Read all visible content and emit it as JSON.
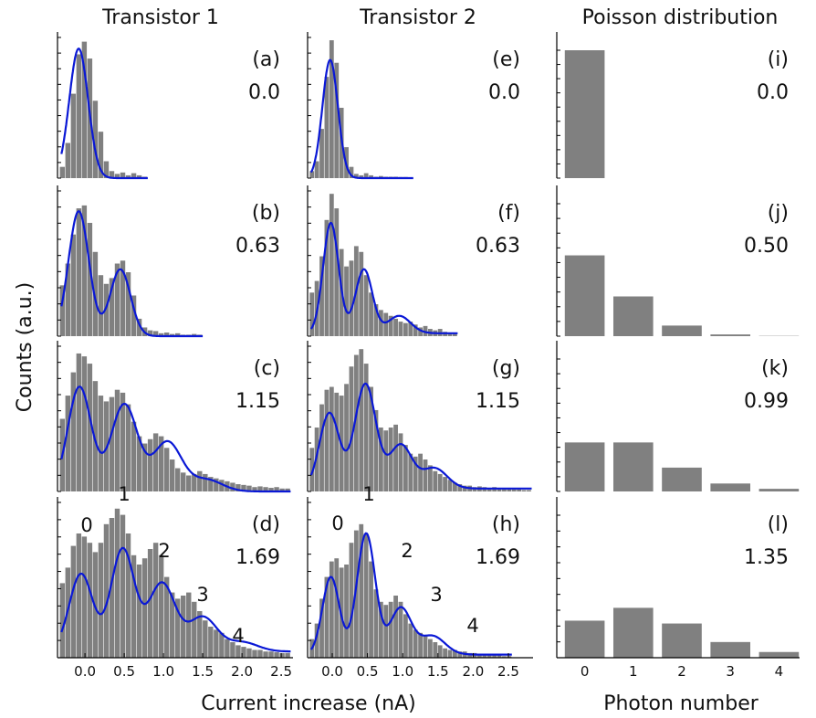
{
  "figure": {
    "ylabel": "Counts (a.u.)",
    "columns": [
      "Transistor 1",
      "Transistor 2",
      "Poisson distribution"
    ],
    "xlabel_current": "Current increase (nA)",
    "xlabel_photon": "Photon number"
  },
  "colors": {
    "bar": "#808080",
    "fit": "#0a18d6",
    "axis": "#000000"
  },
  "chart_data": [
    {
      "type": "bar",
      "panel": "(a)",
      "value_label": "0.0",
      "peak_labels": [],
      "xlim": [
        -0.35,
        2.65
      ],
      "bin_width": 0.07,
      "bins": [
        -0.32,
        -0.25,
        -0.18,
        -0.11,
        -0.04,
        0.03,
        0.1,
        0.17,
        0.24,
        0.31,
        0.38,
        0.45,
        0.52,
        0.59,
        0.66,
        0.73
      ],
      "counts": [
        0.08,
        0.25,
        0.6,
        0.88,
        0.97,
        0.85,
        0.55,
        0.33,
        0.12,
        0.05,
        0.03,
        0.04,
        0.02,
        0.035,
        0.02,
        0.01
      ],
      "fit": {
        "peaks": [
          {
            "mu": -0.08,
            "sigma": 0.12,
            "amp": 0.92
          }
        ],
        "offset": 0.0
      },
      "ticks": [
        0.0,
        0.5,
        1.0,
        1.5,
        2.0,
        2.5
      ],
      "show_tick_labels": false
    },
    {
      "type": "bar",
      "panel": "(b)",
      "value_label": "0.63",
      "peak_labels": [],
      "xlim": [
        -0.35,
        2.65
      ],
      "bin_width": 0.07,
      "bins": [
        -0.32,
        -0.25,
        -0.18,
        -0.11,
        -0.04,
        0.03,
        0.1,
        0.17,
        0.24,
        0.31,
        0.38,
        0.45,
        0.52,
        0.59,
        0.66,
        0.73,
        0.8,
        0.87,
        0.94,
        1.01,
        1.08,
        1.15,
        1.22,
        1.29,
        1.36,
        1.43
      ],
      "counts": [
        0.35,
        0.5,
        0.7,
        0.88,
        0.9,
        0.78,
        0.58,
        0.42,
        0.36,
        0.4,
        0.5,
        0.52,
        0.44,
        0.28,
        0.12,
        0.06,
        0.04,
        0.035,
        0.02,
        0.025,
        0.015,
        0.02,
        0.01,
        0.01,
        0.015,
        0.01
      ],
      "fit": {
        "peaks": [
          {
            "mu": -0.08,
            "sigma": 0.13,
            "amp": 0.86
          },
          {
            "mu": 0.45,
            "sigma": 0.13,
            "amp": 0.46
          }
        ],
        "offset": 0.0
      },
      "ticks": [
        0.0,
        0.5,
        1.0,
        1.5,
        2.0,
        2.5
      ],
      "show_tick_labels": false
    },
    {
      "type": "bar",
      "panel": "(c)",
      "value_label": "1.15",
      "peak_labels": [],
      "xlim": [
        -0.35,
        2.65
      ],
      "bin_width": 0.07,
      "bins": [
        -0.32,
        -0.25,
        -0.18,
        -0.11,
        -0.04,
        0.03,
        0.1,
        0.17,
        0.24,
        0.31,
        0.38,
        0.45,
        0.52,
        0.59,
        0.66,
        0.73,
        0.8,
        0.87,
        0.94,
        1.01,
        1.08,
        1.15,
        1.22,
        1.29,
        1.36,
        1.43,
        1.5,
        1.57,
        1.64,
        1.71,
        1.78,
        1.85,
        1.92,
        1.99,
        2.06,
        2.13,
        2.2,
        2.27,
        2.34,
        2.41,
        2.48,
        2.55
      ],
      "counts": [
        0.5,
        0.66,
        0.82,
        0.95,
        0.93,
        0.88,
        0.76,
        0.66,
        0.62,
        0.65,
        0.7,
        0.68,
        0.6,
        0.48,
        0.38,
        0.33,
        0.36,
        0.4,
        0.38,
        0.3,
        0.22,
        0.16,
        0.13,
        0.11,
        0.12,
        0.14,
        0.12,
        0.1,
        0.09,
        0.08,
        0.07,
        0.06,
        0.05,
        0.045,
        0.04,
        0.03,
        0.035,
        0.03,
        0.025,
        0.03,
        0.02,
        0.02
      ],
      "fit": {
        "peaks": [
          {
            "mu": -0.07,
            "sigma": 0.15,
            "amp": 0.72
          },
          {
            "mu": 0.5,
            "sigma": 0.17,
            "amp": 0.6
          },
          {
            "mu": 1.05,
            "sigma": 0.18,
            "amp": 0.34
          },
          {
            "mu": 1.55,
            "sigma": 0.2,
            "amp": 0.08
          }
        ],
        "offset": 0.0
      },
      "ticks": [
        0.0,
        0.5,
        1.0,
        1.5,
        2.0,
        2.5
      ],
      "show_tick_labels": false
    },
    {
      "type": "bar",
      "panel": "(d)",
      "value_label": "1.69",
      "peak_labels": [
        "0",
        "1",
        "2",
        "3",
        "4"
      ],
      "xlim": [
        -0.35,
        2.65
      ],
      "bin_width": 0.07,
      "bins": [
        -0.32,
        -0.25,
        -0.18,
        -0.11,
        -0.04,
        0.03,
        0.1,
        0.17,
        0.24,
        0.31,
        0.38,
        0.45,
        0.52,
        0.59,
        0.66,
        0.73,
        0.8,
        0.87,
        0.94,
        1.01,
        1.08,
        1.15,
        1.22,
        1.29,
        1.36,
        1.43,
        1.5,
        1.57,
        1.64,
        1.71,
        1.78,
        1.85,
        1.92,
        1.99,
        2.06,
        2.13,
        2.2,
        2.27,
        2.34,
        2.41,
        2.48,
        2.55
      ],
      "counts": [
        0.48,
        0.58,
        0.72,
        0.8,
        0.78,
        0.74,
        0.68,
        0.74,
        0.86,
        0.9,
        0.96,
        0.92,
        0.8,
        0.66,
        0.6,
        0.64,
        0.7,
        0.74,
        0.66,
        0.52,
        0.42,
        0.38,
        0.4,
        0.42,
        0.36,
        0.3,
        0.24,
        0.2,
        0.18,
        0.16,
        0.12,
        0.1,
        0.08,
        0.07,
        0.06,
        0.05,
        0.05,
        0.04,
        0.04,
        0.035,
        0.03,
        0.03
      ],
      "fit": {
        "peaks": [
          {
            "mu": -0.05,
            "sigma": 0.15,
            "amp": 0.5
          },
          {
            "mu": 0.48,
            "sigma": 0.15,
            "amp": 0.66
          },
          {
            "mu": 0.98,
            "sigma": 0.17,
            "amp": 0.44
          },
          {
            "mu": 1.5,
            "sigma": 0.18,
            "amp": 0.22
          },
          {
            "mu": 2.0,
            "sigma": 0.2,
            "amp": 0.06
          }
        ],
        "offset": 0.04
      },
      "ticks": [
        0.0,
        0.5,
        1.0,
        1.5,
        2.0,
        2.5
      ],
      "show_tick_labels": true
    },
    {
      "type": "bar",
      "panel": "(e)",
      "value_label": "0.0",
      "peak_labels": [],
      "xlim": [
        -0.35,
        2.85
      ],
      "bin_width": 0.07,
      "bins": [
        -0.32,
        -0.25,
        -0.18,
        -0.11,
        -0.04,
        0.03,
        0.1,
        0.17,
        0.24,
        0.31,
        0.38,
        0.45,
        0.52,
        0.59,
        0.66,
        0.73,
        0.8,
        0.87,
        0.94,
        1.01,
        1.08
      ],
      "counts": [
        0.05,
        0.12,
        0.35,
        0.72,
        0.98,
        0.82,
        0.5,
        0.22,
        0.08,
        0.03,
        0.02,
        0.035,
        0.02,
        0.01,
        0.015,
        0.01,
        0.01,
        0.01,
        0.008,
        0.008,
        0.006
      ],
      "fit": {
        "peaks": [
          {
            "mu": -0.03,
            "sigma": 0.11,
            "amp": 0.84
          }
        ],
        "offset": 0.0
      },
      "ticks": [
        0.0,
        0.5,
        1.0,
        1.5,
        2.0,
        2.5
      ],
      "show_tick_labels": false
    },
    {
      "type": "bar",
      "panel": "(f)",
      "value_label": "0.63",
      "peak_labels": [],
      "xlim": [
        -0.35,
        2.85
      ],
      "bin_width": 0.07,
      "bins": [
        -0.32,
        -0.25,
        -0.18,
        -0.11,
        -0.04,
        0.03,
        0.1,
        0.17,
        0.24,
        0.31,
        0.38,
        0.45,
        0.52,
        0.59,
        0.66,
        0.73,
        0.8,
        0.87,
        0.94,
        1.01,
        1.08,
        1.15,
        1.22,
        1.29,
        1.36,
        1.43,
        1.5,
        1.57,
        1.64,
        1.71
      ],
      "counts": [
        0.3,
        0.38,
        0.55,
        0.8,
        0.98,
        0.88,
        0.6,
        0.48,
        0.52,
        0.62,
        0.58,
        0.42,
        0.3,
        0.22,
        0.18,
        0.16,
        0.14,
        0.12,
        0.1,
        0.09,
        0.1,
        0.08,
        0.06,
        0.07,
        0.05,
        0.04,
        0.05,
        0.03,
        0.02,
        0.02
      ],
      "fit": {
        "peaks": [
          {
            "mu": -0.02,
            "sigma": 0.11,
            "amp": 0.76
          },
          {
            "mu": 0.45,
            "sigma": 0.12,
            "amp": 0.44
          },
          {
            "mu": 0.95,
            "sigma": 0.16,
            "amp": 0.12
          }
        ],
        "offset": 0.02
      },
      "ticks": [
        0.0,
        0.5,
        1.0,
        1.5,
        2.0,
        2.5
      ],
      "show_tick_labels": false
    },
    {
      "type": "bar",
      "panel": "(g)",
      "value_label": "1.15",
      "peak_labels": [],
      "xlim": [
        -0.35,
        2.85
      ],
      "bin_width": 0.07,
      "bins": [
        -0.32,
        -0.25,
        -0.18,
        -0.11,
        -0.04,
        0.03,
        0.1,
        0.17,
        0.24,
        0.31,
        0.38,
        0.45,
        0.52,
        0.59,
        0.66,
        0.73,
        0.8,
        0.87,
        0.94,
        1.01,
        1.08,
        1.15,
        1.22,
        1.29,
        1.36,
        1.43,
        1.5,
        1.57,
        1.64,
        1.71,
        1.78,
        1.85,
        1.92,
        1.99,
        2.06,
        2.13,
        2.2,
        2.27,
        2.34,
        2.41,
        2.48,
        2.55,
        2.62,
        2.69,
        2.76
      ],
      "counts": [
        0.3,
        0.44,
        0.6,
        0.7,
        0.72,
        0.68,
        0.66,
        0.74,
        0.86,
        0.94,
        0.98,
        0.88,
        0.72,
        0.56,
        0.44,
        0.42,
        0.44,
        0.46,
        0.4,
        0.32,
        0.26,
        0.24,
        0.26,
        0.22,
        0.18,
        0.14,
        0.12,
        0.1,
        0.08,
        0.06,
        0.05,
        0.04,
        0.04,
        0.03,
        0.035,
        0.03,
        0.025,
        0.03,
        0.02,
        0.02,
        0.02,
        0.015,
        0.015,
        0.01,
        0.01
      ],
      "fit": {
        "peaks": [
          {
            "mu": -0.04,
            "sigma": 0.14,
            "amp": 0.52
          },
          {
            "mu": 0.47,
            "sigma": 0.15,
            "amp": 0.72
          },
          {
            "mu": 0.97,
            "sigma": 0.16,
            "amp": 0.3
          },
          {
            "mu": 1.45,
            "sigma": 0.18,
            "amp": 0.14
          }
        ],
        "offset": 0.02
      },
      "ticks": [
        0.0,
        0.5,
        1.0,
        1.5,
        2.0,
        2.5
      ],
      "show_tick_labels": false
    },
    {
      "type": "bar",
      "panel": "(h)",
      "value_label": "1.69",
      "peak_labels": [
        "0",
        "1",
        "2",
        "3",
        "4"
      ],
      "xlim": [
        -0.35,
        2.85
      ],
      "bin_width": 0.07,
      "bins": [
        -0.32,
        -0.25,
        -0.18,
        -0.11,
        -0.04,
        0.03,
        0.1,
        0.17,
        0.24,
        0.31,
        0.38,
        0.45,
        0.52,
        0.59,
        0.66,
        0.73,
        0.8,
        0.87,
        0.94,
        1.01,
        1.08,
        1.15,
        1.22,
        1.29,
        1.36,
        1.43,
        1.5,
        1.57,
        1.64,
        1.71,
        1.78,
        1.85,
        1.92,
        1.99,
        2.06,
        2.13,
        2.2,
        2.27,
        2.34,
        2.41,
        2.48
      ],
      "counts": [
        0.12,
        0.22,
        0.38,
        0.52,
        0.62,
        0.64,
        0.58,
        0.6,
        0.74,
        0.82,
        0.86,
        0.8,
        0.62,
        0.44,
        0.36,
        0.34,
        0.36,
        0.4,
        0.36,
        0.28,
        0.22,
        0.18,
        0.16,
        0.14,
        0.12,
        0.1,
        0.08,
        0.06,
        0.05,
        0.05,
        0.04,
        0.04,
        0.03,
        0.03,
        0.025,
        0.02,
        0.02,
        0.02,
        0.015,
        0.01,
        0.01
      ],
      "fit": {
        "peaks": [
          {
            "mu": -0.02,
            "sigma": 0.12,
            "amp": 0.5
          },
          {
            "mu": 0.48,
            "sigma": 0.13,
            "amp": 0.78
          },
          {
            "mu": 0.97,
            "sigma": 0.15,
            "amp": 0.3
          },
          {
            "mu": 1.42,
            "sigma": 0.18,
            "amp": 0.12
          }
        ],
        "offset": 0.02
      },
      "ticks": [
        0.0,
        0.5,
        1.0,
        1.5,
        2.0,
        2.5
      ],
      "show_tick_labels": true
    },
    {
      "type": "bar",
      "panel": "(i)",
      "value_label": "0.0",
      "categories": [
        "0",
        "1",
        "2",
        "3",
        "4"
      ],
      "values": [
        1.0,
        0.0,
        0.0,
        0.0,
        0.0
      ],
      "show_tick_labels": false
    },
    {
      "type": "bar",
      "panel": "(j)",
      "value_label": "0.50",
      "categories": [
        "0",
        "1",
        "2",
        "3",
        "4"
      ],
      "values": [
        0.61,
        0.3,
        0.08,
        0.013,
        0.002
      ],
      "show_tick_labels": false
    },
    {
      "type": "bar",
      "panel": "(k)",
      "value_label": "0.99",
      "categories": [
        "0",
        "1",
        "2",
        "3",
        "4"
      ],
      "values": [
        0.37,
        0.37,
        0.18,
        0.06,
        0.02
      ],
      "show_tick_labels": false
    },
    {
      "type": "bar",
      "panel": "(l)",
      "value_label": "1.35",
      "categories": [
        "0",
        "1",
        "2",
        "3",
        "4"
      ],
      "values": [
        0.26,
        0.35,
        0.24,
        0.11,
        0.04
      ],
      "show_tick_labels": true
    }
  ]
}
